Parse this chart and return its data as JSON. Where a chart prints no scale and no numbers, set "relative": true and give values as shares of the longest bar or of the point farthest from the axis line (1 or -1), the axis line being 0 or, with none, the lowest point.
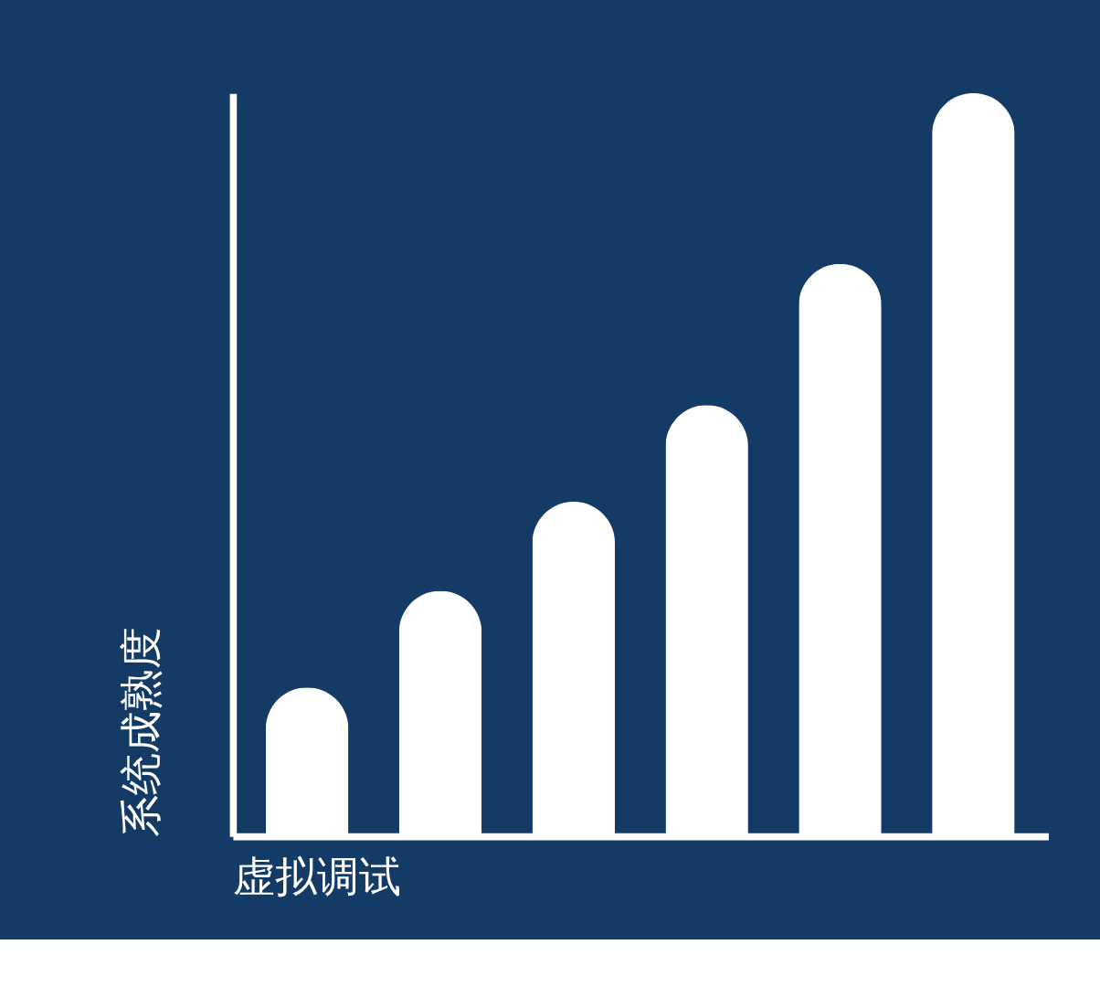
{
  "chart_data": {
    "type": "bar",
    "relative": true,
    "xlabel": "虚拟调试",
    "ylabel": "系统成熟度",
    "categories": [
      null,
      null,
      null,
      null,
      null,
      null
    ],
    "values": [
      0.2,
      0.33,
      0.45,
      0.58,
      0.77,
      1.0
    ],
    "color": "#ffffff",
    "grid": false
  }
}
